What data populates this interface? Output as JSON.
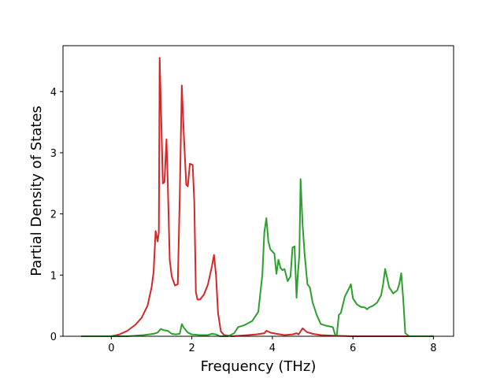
{
  "chart_data": {
    "type": "line",
    "title": "",
    "xlabel": "Frequency (THz)",
    "ylabel": "Partial Density of States",
    "xlim": [
      -1.2,
      8.5
    ],
    "ylim": [
      0,
      4.75
    ],
    "xticks": [
      0,
      2,
      4,
      6,
      8
    ],
    "yticks": [
      0,
      1,
      2,
      3,
      4
    ],
    "grid": false,
    "legend": "none",
    "series": [
      {
        "color": "#d62728",
        "x": [
          -0.75,
          0.0,
          0.2,
          0.4,
          0.6,
          0.75,
          0.9,
          1.0,
          1.05,
          1.1,
          1.15,
          1.18,
          1.2,
          1.23,
          1.28,
          1.32,
          1.37,
          1.4,
          1.45,
          1.5,
          1.58,
          1.65,
          1.7,
          1.75,
          1.8,
          1.86,
          1.9,
          1.95,
          2.02,
          2.06,
          2.1,
          2.14,
          2.2,
          2.3,
          2.4,
          2.5,
          2.55,
          2.6,
          2.65,
          2.72,
          2.8,
          3.0,
          3.2,
          3.4,
          3.6,
          3.8,
          3.85,
          3.95,
          4.1,
          4.3,
          4.5,
          4.6,
          4.65,
          4.75,
          4.85,
          5.0,
          5.2,
          5.5,
          6.0,
          8.0
        ],
        "y": [
          0.0,
          0.0,
          0.03,
          0.09,
          0.19,
          0.3,
          0.5,
          0.8,
          1.05,
          1.72,
          1.55,
          1.7,
          4.55,
          3.8,
          2.5,
          2.52,
          3.22,
          2.55,
          1.25,
          0.98,
          0.83,
          0.85,
          2.3,
          4.1,
          3.3,
          2.48,
          2.45,
          2.82,
          2.8,
          2.2,
          0.72,
          0.6,
          0.6,
          0.68,
          0.85,
          1.15,
          1.33,
          1.0,
          0.38,
          0.08,
          0.02,
          0.0,
          0.01,
          0.02,
          0.03,
          0.05,
          0.09,
          0.06,
          0.04,
          0.02,
          0.03,
          0.05,
          0.03,
          0.13,
          0.07,
          0.04,
          0.02,
          0.01,
          0.0,
          0.0
        ]
      },
      {
        "color": "#2ca02c",
        "x": [
          -0.75,
          0.0,
          0.4,
          0.8,
          1.05,
          1.15,
          1.23,
          1.3,
          1.4,
          1.5,
          1.6,
          1.7,
          1.75,
          1.8,
          1.9,
          2.0,
          2.2,
          2.4,
          2.5,
          2.6,
          2.7,
          2.9,
          3.05,
          3.15,
          3.3,
          3.5,
          3.65,
          3.75,
          3.8,
          3.85,
          3.9,
          3.95,
          4.05,
          4.1,
          4.15,
          4.2,
          4.25,
          4.3,
          4.38,
          4.45,
          4.5,
          4.55,
          4.6,
          4.63,
          4.67,
          4.7,
          4.75,
          4.8,
          4.87,
          4.93,
          5.0,
          5.1,
          5.2,
          5.35,
          5.5,
          5.56,
          5.6,
          5.65,
          5.7,
          5.8,
          5.9,
          5.95,
          6.0,
          6.1,
          6.2,
          6.3,
          6.35,
          6.4,
          6.5,
          6.6,
          6.7,
          6.75,
          6.8,
          6.9,
          7.0,
          7.1,
          7.15,
          7.2,
          7.25,
          7.3,
          7.4,
          8.0
        ],
        "y": [
          0.0,
          0.0,
          0.0,
          0.02,
          0.04,
          0.06,
          0.12,
          0.1,
          0.09,
          0.04,
          0.03,
          0.04,
          0.2,
          0.14,
          0.06,
          0.03,
          0.02,
          0.02,
          0.04,
          0.03,
          0.0,
          0.0,
          0.05,
          0.15,
          0.18,
          0.25,
          0.4,
          1.0,
          1.7,
          1.93,
          1.55,
          1.42,
          1.35,
          1.02,
          1.25,
          1.12,
          1.08,
          1.1,
          0.9,
          0.98,
          1.45,
          1.47,
          0.63,
          1.0,
          1.33,
          2.57,
          1.82,
          1.35,
          0.85,
          0.8,
          0.55,
          0.35,
          0.2,
          0.17,
          0.15,
          0.02,
          0.02,
          0.35,
          0.38,
          0.65,
          0.78,
          0.85,
          0.62,
          0.52,
          0.48,
          0.47,
          0.44,
          0.47,
          0.5,
          0.55,
          0.67,
          0.85,
          1.1,
          0.8,
          0.7,
          0.75,
          0.85,
          1.03,
          0.6,
          0.05,
          0.0,
          0.0
        ]
      }
    ]
  }
}
